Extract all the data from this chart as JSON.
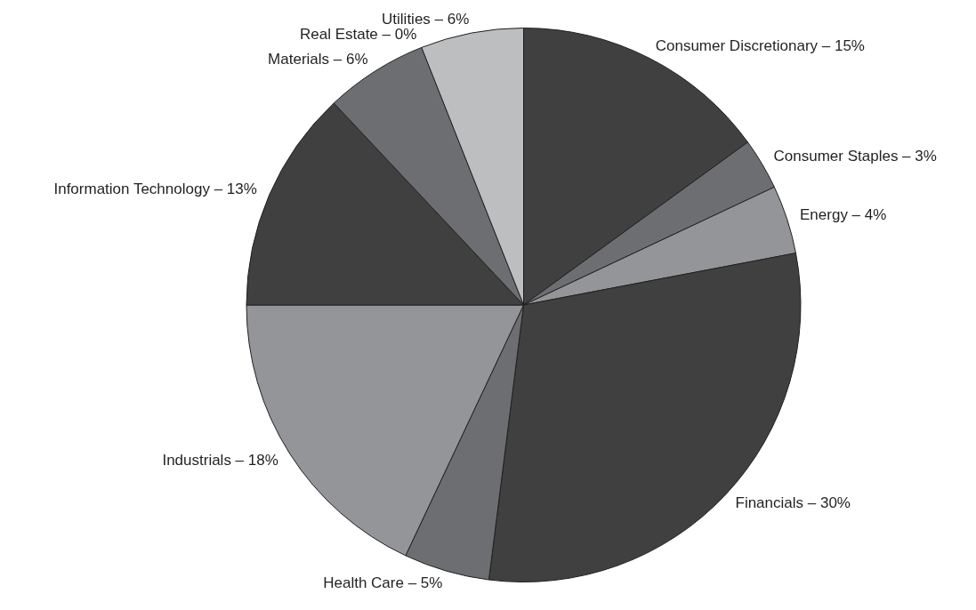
{
  "chart_data": {
    "type": "pie",
    "categories": [
      "Consumer Discretionary – 15%",
      "Consumer Staples – 3%",
      "Energy – 4%",
      "Financials – 30%",
      "Health Care – 5%",
      "Industrials – 18%",
      "Information Technology – 13%",
      "Materials – 6%",
      "Real Estate – 0%",
      "Utilities – 6%"
    ],
    "values": [
      15,
      3,
      4,
      30,
      5,
      18,
      13,
      6,
      0,
      6
    ],
    "colors": [
      "#404040",
      "#6d6e71",
      "#939598",
      "#404040",
      "#6d6e71",
      "#939598",
      "#404040",
      "#6d6e71",
      "#6d6e71",
      "#bcbec0"
    ],
    "legend": false
  }
}
